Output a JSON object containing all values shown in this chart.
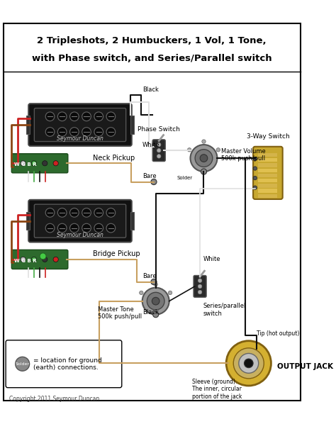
{
  "title_line1": "2 Tripleshots, 2 Humbuckers, 1 Vol, 1 Tone,",
  "title_line2": "with Phase switch, and Series/Parallel switch",
  "bg_color": "#ffffff",
  "border_color": "#000000",
  "copyright": "Copyright 2011 Seymour Duncan",
  "labels": {
    "neck_pickup": "Neck Pickup",
    "bridge_pickup": "Bridge Pickup",
    "phase_switch": "Phase Switch",
    "master_volume": "Master Volume\n500k push/pull",
    "series_parallel": "Series/parallel\nswitch",
    "master_tone": "Master Tone\n500k push/pull",
    "three_way": "3-Way Switch",
    "output_jack": "OUTPUT JACK",
    "sleeve": "Sleeve (ground).\nThe inner, circular\nportion of the jack",
    "tip": "Tip (hot output)",
    "black1": "Black",
    "white1": "White",
    "bare1": "Bare",
    "bare2": "Bare",
    "black2": "Black",
    "white2": "White",
    "solder_label": "= location for ground\n(earth) connections.",
    "wgbr": "W G B R"
  },
  "pickup_color": "#111111",
  "pickup_text_color": "#ffffff",
  "pcb_color": "#2d6a2d",
  "wire_colors": {
    "black": "#111111",
    "white": "#e0e0e0",
    "red": "#cc2222",
    "green": "#44aa44",
    "bare": "#c8a060",
    "gray": "#888888"
  },
  "switch_3way_colors": [
    "#d4b44a",
    "#c8a830",
    "#e0c050"
  ],
  "jack_outer": "#d4b030",
  "jack_inner": "#c0c0c0",
  "jack_center": "#111111",
  "solder_dot_color": "#888888"
}
